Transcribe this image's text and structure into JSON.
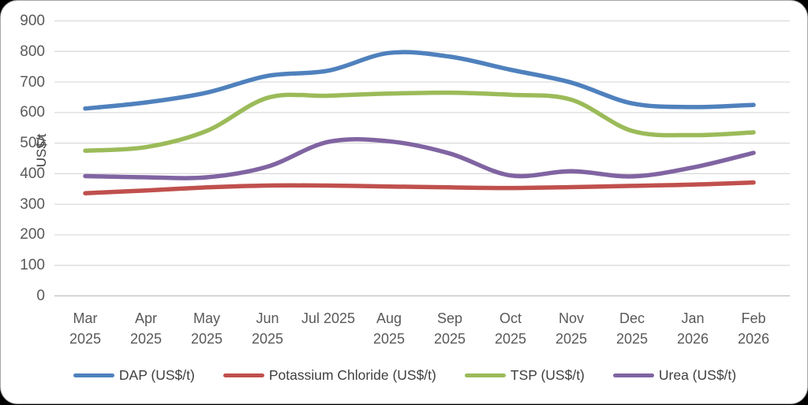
{
  "chart_data": {
    "type": "line",
    "title": "",
    "ylabel": "US$/t",
    "ylim": [
      0,
      900
    ],
    "yticks": [
      0,
      100,
      200,
      300,
      400,
      500,
      600,
      700,
      800,
      900
    ],
    "grid": true,
    "smooth": true,
    "legend_position": "bottom",
    "categories": [
      "Mar 2025",
      "Apr 2025",
      "May 2025",
      "Jun 2025",
      "Jul 2025",
      "Aug 2025",
      "Sep 2025",
      "Oct 2025",
      "Nov 2025",
      "Dec 2025",
      "Jan 2026",
      "Feb 2026"
    ],
    "x_tick_lines": [
      [
        "Mar",
        "2025"
      ],
      [
        "Apr",
        "2025"
      ],
      [
        "May",
        "2025"
      ],
      [
        "Jun",
        "2025"
      ],
      [
        "Jul 2025"
      ],
      [
        "Aug",
        "2025"
      ],
      [
        "Sep",
        "2025"
      ],
      [
        "Oct",
        "2025"
      ],
      [
        "Nov",
        "2025"
      ],
      [
        "Dec",
        "2025"
      ],
      [
        "Jan",
        "2026"
      ],
      [
        "Feb",
        "2026"
      ]
    ],
    "series": [
      {
        "name": "DAP (US$/t)",
        "color": "#4F81BD",
        "values": [
          613,
          633,
          665,
          720,
          737,
          795,
          783,
          740,
          698,
          630,
          618,
          625
        ]
      },
      {
        "name": "Potassium Chloride (US$/t)",
        "color": "#C0504D",
        "values": [
          336,
          345,
          355,
          361,
          361,
          358,
          355,
          353,
          356,
          360,
          364,
          371
        ]
      },
      {
        "name": "TSP (US$/t)",
        "color": "#9BBB59",
        "values": [
          475,
          487,
          540,
          648,
          655,
          662,
          665,
          658,
          642,
          540,
          526,
          535
        ]
      },
      {
        "name": "Urea (US$/t)",
        "color": "#8064A2",
        "values": [
          392,
          388,
          388,
          423,
          504,
          506,
          466,
          394,
          408,
          391,
          420,
          468
        ]
      }
    ]
  },
  "colors": {
    "gridline": "#D9D9D9",
    "axis_line": "#BFBFBF",
    "tick_text": "#595959",
    "legend_text": "#404040",
    "card_background": "#FFFFFF",
    "card_border": "#A6A6A6"
  }
}
